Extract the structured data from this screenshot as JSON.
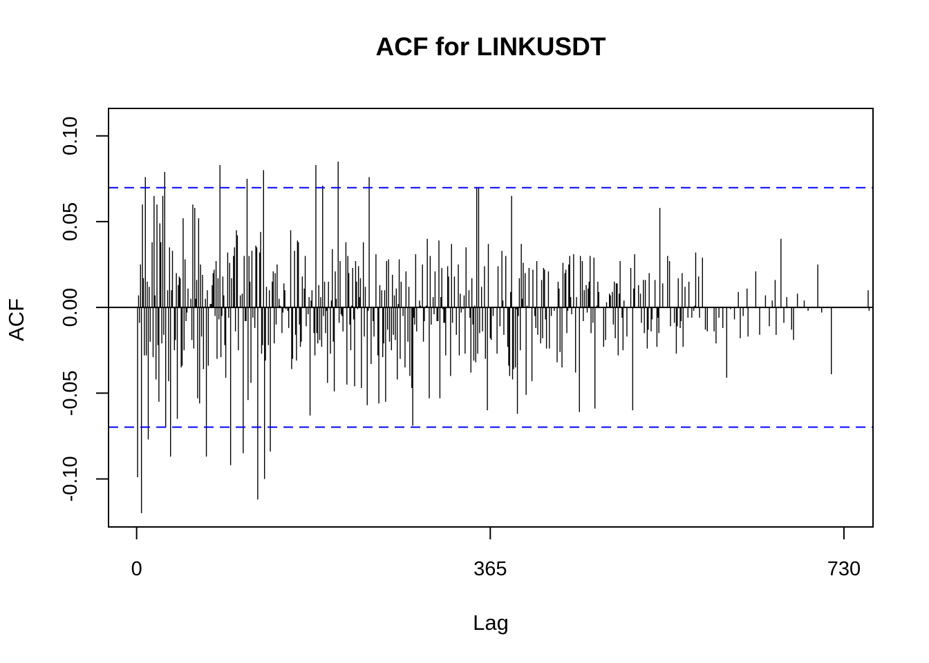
{
  "chart_data": {
    "type": "bar",
    "title": "ACF for LINKUSDT",
    "xlabel": "Lag",
    "ylabel": "ACF",
    "xlim": [
      -29,
      760
    ],
    "ylim": [
      -0.128,
      0.116
    ],
    "x_ticks": [
      {
        "value": 0,
        "label": "0"
      },
      {
        "value": 365,
        "label": "365"
      },
      {
        "value": 730,
        "label": "730"
      }
    ],
    "y_ticks": [
      {
        "value": 0.1,
        "label": "0.10"
      },
      {
        "value": 0.05,
        "label": "0.05"
      },
      {
        "value": 0.0,
        "label": "0.00"
      },
      {
        "value": -0.05,
        "label": "-0.05"
      },
      {
        "value": -0.1,
        "label": "-0.10"
      }
    ],
    "confidence_bounds": [
      0.0698,
      -0.0698
    ],
    "grid": false,
    "colors": {
      "bars": "#000000",
      "bounds": "#0000ff",
      "zero_line": "#000000"
    },
    "series": [
      {
        "lags_start": 0,
        "values": [
          0.0,
          -0.099,
          0.007,
          -0.009,
          0.025,
          -0.12,
          0.06,
          0.017,
          -0.028,
          0.076,
          -0.028,
          0.015,
          -0.077,
          0.012,
          -0.02,
          0.0,
          0.038,
          -0.029,
          0.065,
          0.007,
          -0.042,
          0.06,
          -0.022,
          -0.055,
          0.049,
          0.038,
          -0.021,
          0.065,
          -0.016,
          0.079,
          -0.07,
          0.0,
          0.01,
          -0.043,
          0.035,
          -0.087,
          0.01,
          0.033,
          0.0,
          -0.025,
          -0.019,
          0.02,
          -0.065,
          0.013,
          0.018,
          0.017,
          -0.035,
          -0.034,
          0.052,
          -0.025,
          0.028,
          -0.008,
          -0.003,
          0.011,
          0.0,
          0.0,
          0.005,
          -0.019,
          0.06,
          -0.024,
          0.058,
          0.005,
          0.016,
          -0.053,
          0.052,
          -0.056,
          0.025,
          -0.017,
          0.019,
          -0.036,
          0.0,
          0.005,
          -0.087,
          0.01,
          -0.034,
          0.0,
          0.002,
          0.002,
          0.013,
          0.02,
          0.022,
          -0.005,
          0.027,
          -0.03,
          0.017,
          -0.007,
          0.083,
          -0.029,
          -0.005,
          0.018,
          0.007,
          -0.022,
          -0.041,
          0.0,
          0.032,
          -0.006,
          0.026,
          -0.092,
          0.017,
          0.0,
          0.03,
          0.035,
          -0.014,
          0.045,
          0.042,
          -0.025,
          0.0,
          0.007,
          0.0,
          0.008,
          -0.085,
          0.03,
          -0.008,
          -0.008,
          0.075,
          -0.054,
          0.03,
          0.015,
          -0.044,
          0.033,
          -0.006,
          0.0,
          -0.012,
          0.036,
          0.035,
          -0.112,
          0.0,
          0.032,
          0.044,
          -0.027,
          -0.022,
          0.08,
          -0.1,
          -0.031,
          0.012,
          0.0,
          -0.022,
          0.01,
          -0.084,
          0.0,
          0.015,
          0.021,
          -0.021,
          0.02,
          -0.01,
          0.025,
          0.0,
          0.005,
          0.001,
          0.0,
          -0.015,
          -0.003,
          0.014,
          0.01,
          -0.001,
          0.0,
          -0.002,
          -0.012,
          0.0,
          0.045,
          -0.036,
          -0.03,
          0.0,
          0.033,
          -0.016,
          -0.031,
          0.039,
          0.038,
          -0.01,
          -0.023,
          -0.02,
          0.018,
          0.0,
          0.011,
          0.03,
          -0.011,
          0.0,
          -0.004,
          0.006,
          -0.063,
          0.004,
          0.01,
          0.0,
          -0.015,
          -0.028,
          0.083,
          -0.015,
          -0.021,
          0.013,
          -0.019,
          0.006,
          -0.023,
          0.071,
          -0.005,
          0.015,
          -0.015,
          -0.002,
          -0.044,
          0.015,
          0.0,
          -0.027,
          0.004,
          0.034,
          -0.02,
          -0.049,
          0.021,
          0.005,
          0.0,
          0.085,
          -0.009,
          0.027,
          -0.004,
          -0.005,
          -0.014,
          0.0,
          0.0,
          0.038,
          -0.045,
          0.03,
          0.02,
          -0.01,
          -0.025,
          0.001,
          0.023,
          -0.007,
          -0.046,
          0.027,
          0.015,
          -0.001,
          0.024,
          0.006,
          0.017,
          -0.047,
          0.0,
          0.038,
          -0.017,
          0.012,
          0.0,
          -0.057,
          -0.002,
          0.076,
          0.0,
          -0.033,
          0.0,
          -0.008,
          -0.017,
          0.0,
          0.031,
          0.0,
          -0.028,
          -0.056,
          0.013,
          0.0,
          0.01,
          -0.029,
          -0.021,
          0.01,
          -0.055,
          0.027,
          -0.013,
          0.028,
          -0.02,
          0.0,
          -0.025,
          0.019,
          -0.016,
          0.007,
          -0.019,
          0.011,
          -0.042,
          0.002,
          0.028,
          -0.03,
          0.015,
          0.0,
          -0.005,
          0.0,
          -0.035,
          0.021,
          0.0,
          -0.02,
          0.012,
          -0.04,
          0.0,
          -0.047,
          -0.069,
          -0.006,
          -0.01,
          0.031,
          -0.014,
          0.0,
          0.0,
          0.004,
          0.001,
          0.0,
          0.025,
          -0.02,
          -0.008,
          0.0,
          0.001,
          0.04,
          0.0,
          -0.053,
          0.03,
          -0.01,
          0.0,
          0.006,
          -0.004,
          0.021,
          0.0,
          -0.008,
          -0.008,
          0.039,
          -0.053,
          0.006,
          0.023,
          -0.001,
          -0.009,
          -0.009,
          -0.028,
          0.0,
          0.024,
          0.018,
          0.0,
          -0.04,
          0.037,
          -0.009,
          0.0,
          0.018,
          0.0,
          -0.016,
          0.0,
          0.025,
          -0.028,
          0.008,
          -0.003,
          0.0,
          -0.001,
          0.007,
          -0.027,
          0.035,
          0.0,
          0.0,
          0.01,
          -0.006,
          -0.038,
          0.017,
          -0.01,
          -0.031,
          0.001,
          -0.032,
          0.07,
          -0.027,
          0.07,
          -0.015,
          0.0,
          0.012,
          -0.014,
          0.0,
          0.024,
          -0.03,
          0.0,
          -0.06,
          0.037,
          0.0,
          -0.018,
          -0.019,
          0.0,
          -0.005,
          0.0,
          0.0,
          0.0,
          -0.027,
          0.024,
          0.0,
          -0.011,
          0.0,
          0.033,
          0.004,
          -0.016,
          0.0,
          0.03,
          0.0,
          -0.023,
          -0.034,
          -0.04,
          0.009,
          0.065,
          -0.042,
          -0.036,
          0.0,
          -0.035,
          -0.001,
          -0.062,
          -0.005,
          0.017,
          -0.025,
          0.037,
          0.005,
          0.026,
          0.0,
          0.02,
          -0.051,
          0.001,
          0.0,
          0.023,
          0.0,
          0.0,
          -0.043,
          0.022,
          0.0,
          -0.005,
          -0.012,
          0.027,
          -0.016,
          0.0,
          0.0,
          -0.021,
          0.016,
          -0.018,
          0.023,
          0.022,
          -0.007,
          -0.024,
          0.0,
          0.021,
          -0.024,
          0.0,
          -0.005,
          0.0,
          0.0,
          -0.002,
          0.0,
          0.0,
          -0.032,
          0.015,
          0.011,
          -0.026,
          0.0,
          -0.035,
          0.026,
          0.0,
          0.02,
          0.022,
          -0.015,
          -0.002,
          0.025,
          0.03,
          0.006,
          -0.004,
          0.0,
          0.031,
          0.0,
          -0.038,
          0.006,
          0.0,
          0.0,
          -0.061,
          0.03,
          0.0,
          0.027,
          -0.008,
          0.01,
          0.0,
          0.013,
          -0.003,
          0.011,
          0.015,
          0.03,
          -0.015,
          0.0,
          -0.009,
          0.029,
          -0.059,
          0.0,
          0.001,
          0.015,
          0.009,
          0.0,
          0.0,
          0.0,
          0.0,
          -0.023,
          0.0,
          -0.019,
          0.003,
          0.0,
          0.0,
          0.008,
          0.007,
          0.0,
          0.009,
          -0.01,
          0.015,
          -0.018,
          0.014,
          0.014,
          -0.028,
          0.008,
          0.027,
          0.0,
          -0.006,
          -0.025,
          0.004,
          0.0,
          0.0,
          -0.017,
          0.0,
          0.0,
          0.0,
          0.023,
          0.0,
          -0.06,
          0.011,
          0.031,
          0.0,
          0.0,
          0.0,
          0.013,
          0.0,
          0.008,
          -0.009,
          0.0,
          0.016,
          -0.015,
          0.016,
          0.0,
          -0.024,
          -0.013,
          0.02,
          0.0,
          -0.014,
          -0.007,
          0.0,
          0.0,
          0.016,
          0.0,
          -0.023,
          -0.006,
          -0.015,
          0.058,
          0.0,
          0.0,
          0.014,
          0.0,
          0.0,
          0.0,
          0.0,
          0.03,
          0.0,
          0.027,
          -0.011,
          0.0,
          0.0,
          0.0,
          -0.009,
          0.0,
          -0.027,
          -0.011,
          0.017,
          0.0,
          -0.012,
          -0.008,
          0.02,
          -0.023,
          0.0,
          0.012,
          0.0,
          0.0,
          -0.006,
          0.015,
          0.0,
          0.0,
          -0.006,
          0.0,
          -0.002,
          0.001,
          0.032,
          0.0,
          0.0,
          0.018,
          -0.006,
          0.0,
          0.0,
          0.029,
          0.0,
          0.0,
          -0.013,
          0.0,
          -0.014,
          0.0,
          0.0,
          0.0,
          0.0,
          0.0,
          0.0,
          -0.014,
          0.0,
          -0.021,
          0.0,
          0.0,
          -0.006,
          0.0,
          0.0,
          0.0,
          -0.012,
          0.0,
          0.0,
          0.0,
          -0.041,
          0.0,
          0.0,
          0.0,
          -0.001,
          0.0,
          0.0,
          0.0,
          -0.007,
          0.0,
          0.0,
          0.0,
          0.009,
          0.0,
          -0.018,
          0.0,
          0.0,
          -0.005,
          0.0,
          0.0,
          0.0,
          0.011,
          -0.017,
          0.0,
          0.0,
          0.0,
          0.0,
          0.0,
          0.0,
          0.0,
          0.021,
          0.0,
          0.0,
          0.0,
          -0.016,
          0.0,
          0.0,
          0.0,
          0.0,
          0.0,
          0.007,
          0.0,
          0.0,
          0.0,
          -0.011,
          0.0,
          0.0,
          0.004,
          0.0,
          0.0,
          0.016,
          -0.016,
          0.0,
          0.0,
          0.0,
          0.0,
          0.04,
          0.0,
          0.0,
          -0.009,
          0.0,
          0.0,
          0.006,
          0.0,
          0.0,
          0.0,
          0.0,
          -0.013,
          0.0,
          -0.019,
          0.0,
          0.0,
          0.0,
          0.008,
          0.0,
          0.0,
          0.0,
          0.0,
          0.0,
          0.0,
          0.004,
          0.0,
          0.0,
          0.0,
          -0.002,
          0.0,
          0.0,
          0.0,
          0.0,
          0.0,
          0.0,
          0.0,
          0.0,
          0.0,
          0.025,
          0.0,
          0.0,
          0.0,
          -0.003,
          0.0,
          0.0,
          0.0,
          0.0,
          0.0,
          0.0,
          0.0,
          0.0,
          0.0,
          -0.039,
          0.0,
          0.0,
          0.0,
          0.0,
          0.0,
          0.0,
          0.0,
          0.0,
          0.0,
          0.0,
          0.0,
          0.0,
          0.0,
          0.0,
          0.0,
          0.0,
          0.0,
          0.0,
          0.0,
          0.0,
          0.0,
          0.0,
          0.0,
          0.0,
          0.0,
          0.0,
          0.0,
          0.0,
          0.0,
          0.0,
          0.0,
          0.0,
          0.0,
          0.0,
          0.0,
          0.0,
          0.0,
          0.01,
          -0.002
        ]
      }
    ]
  }
}
